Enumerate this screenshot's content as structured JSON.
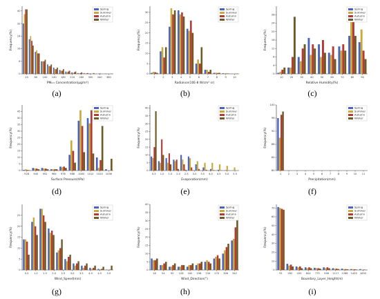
{
  "series_names": [
    "Spring",
    "Summer",
    "Autumn",
    "Winter"
  ],
  "colors": [
    "#4a62c0",
    "#c8a93a",
    "#b23b35",
    "#6e5a24"
  ],
  "chart_data": [
    {
      "type": "bar",
      "panel_label": "(a)",
      "xlabel": "PM₂.₅ Concentration(μg/m³)",
      "ylabel": "Frequency(%)",
      "categories": [
        "20",
        "40",
        "60",
        "80",
        "100",
        "120",
        "140",
        "160",
        "180",
        "200",
        "220",
        "240",
        "260",
        "280",
        "300"
      ],
      "tick_labels": [
        "20",
        "60",
        "100",
        "140",
        "180",
        "220",
        "260",
        "300",
        "340",
        "380"
      ],
      "ylim": [
        0,
        43
      ],
      "yticks": [
        0,
        8,
        16,
        24,
        32,
        40
      ],
      "series": [
        {
          "name": "Spring",
          "values": [
            32,
            22,
            14,
            8,
            6,
            4,
            2.5,
            1.5,
            1,
            0.5,
            0.5,
            0.3,
            0.2,
            0.1,
            0.1
          ]
        },
        {
          "name": "Summer",
          "values": [
            38,
            24,
            15,
            8,
            5,
            3,
            2,
            1,
            0.5,
            0.3,
            0.2,
            0.1,
            0.1,
            0,
            0
          ]
        },
        {
          "name": "Autumn",
          "values": [
            41,
            21,
            13,
            8,
            5,
            3,
            2,
            1.5,
            1,
            0.5,
            0.3,
            0.2,
            0.1,
            0.1,
            0.1
          ]
        },
        {
          "name": "Winter",
          "values": [
            41,
            18,
            13,
            9,
            6,
            4,
            3,
            2,
            1.5,
            1,
            0.5,
            0.5,
            0.3,
            0.2,
            0.2
          ]
        }
      ]
    },
    {
      "type": "bar",
      "panel_label": "(b)",
      "xlabel": "Radiance(10E-8 W/cm² sr)",
      "ylabel": "Frequency(%)",
      "categories": [
        "1",
        "2",
        "3",
        "4",
        "5",
        "6",
        "7",
        "8",
        "9",
        "10"
      ],
      "tick_labels": [
        "1",
        "2",
        "3",
        "4",
        "5",
        "6",
        "7",
        "8",
        "9",
        "10"
      ],
      "ylim": [
        0,
        33
      ],
      "yticks": [
        0,
        5,
        10,
        15,
        20,
        25,
        30
      ],
      "series": [
        {
          "name": "Spring",
          "values": [
            0.5,
            11,
            23,
            31,
            22,
            5,
            2,
            0.5,
            0.3,
            0.1
          ]
        },
        {
          "name": "Summer",
          "values": [
            1,
            13,
            32,
            29,
            21,
            7,
            2,
            0.6,
            0.3,
            0.1
          ]
        },
        {
          "name": "Autumn",
          "values": [
            0.8,
            8,
            29,
            30,
            26,
            5,
            1,
            0.4,
            0.2,
            0.1
          ]
        },
        {
          "name": "Winter",
          "values": [
            0.5,
            13,
            31,
            28,
            20,
            13,
            2,
            0.5,
            0.2,
            0.1
          ]
        }
      ]
    },
    {
      "type": "bar",
      "panel_label": "(c)",
      "xlabel": "Relative Humidity(%)",
      "ylabel": "Frequency(%)",
      "categories": [
        "10",
        "20",
        "30",
        "40",
        "50",
        "60",
        "70",
        "80",
        "90"
      ],
      "tick_labels": [
        "10",
        "20",
        "30",
        "40",
        "50",
        "60",
        "70",
        "80",
        "90"
      ],
      "ylim": [
        0,
        32
      ],
      "yticks": [
        0,
        4,
        8,
        12,
        16,
        20,
        24,
        28
      ],
      "series": [
        {
          "name": "Spring",
          "values": [
            0.5,
            3,
            8,
            17,
            14,
            10,
            13,
            18,
            15
          ]
        },
        {
          "name": "Summer",
          "values": [
            1,
            3,
            6,
            9,
            8,
            9,
            11,
            27,
            21
          ]
        },
        {
          "name": "Autumn",
          "values": [
            2,
            8,
            12,
            14,
            16,
            13,
            14,
            30,
            11
          ]
        },
        {
          "name": "Winter",
          "values": [
            3,
            27,
            14,
            12,
            10,
            7,
            11,
            18,
            7
          ]
        }
      ]
    },
    {
      "type": "bar",
      "panel_label": "(d)",
      "xlabel": "Surface Pressure(hPa)",
      "ylabel": "Frequency(%)",
      "categories": [
        "928",
        "940",
        "952",
        "964",
        "976",
        "988",
        "1000",
        "1012",
        "1024",
        "1036"
      ],
      "tick_labels": [
        "928",
        "940",
        "952",
        "964",
        "976",
        "988",
        "1000",
        "1012",
        "1024",
        "1036"
      ],
      "ylim": [
        0,
        50
      ],
      "yticks": [
        0,
        5,
        10,
        15,
        20,
        25,
        30,
        35,
        40,
        45
      ],
      "series": [
        {
          "name": "Spring",
          "values": [
            0.5,
            2,
            2,
            1,
            3,
            12,
            38,
            40,
            10,
            1
          ]
        },
        {
          "name": "Summer",
          "values": [
            1,
            1.5,
            1.5,
            1,
            2.5,
            23,
            46,
            36,
            2,
            0
          ]
        },
        {
          "name": "Autumn",
          "values": [
            0.5,
            1.5,
            1.5,
            1,
            3,
            15,
            34,
            46,
            8,
            0
          ]
        },
        {
          "name": "Winter",
          "values": [
            0.3,
            1,
            1,
            1,
            2,
            6,
            14,
            13,
            34,
            9
          ]
        }
      ]
    },
    {
      "type": "bar",
      "panel_label": "(e)",
      "xlabel": "Evaporation(mm)",
      "ylabel": "Frequency(%)",
      "categories": [
        "0.5",
        "1",
        "1.5",
        "2",
        "2.5",
        "3",
        "3.5",
        "4",
        "4.5",
        "5",
        "5.5",
        "6"
      ],
      "tick_labels": [
        "0.5",
        "1.0",
        "1.5",
        "2.0",
        "2.5",
        "3.0",
        "3.5",
        "4.0",
        "4.5",
        "5.0",
        "5.5"
      ],
      "ylim": [
        0,
        42
      ],
      "yticks": [
        0,
        5,
        10,
        15,
        20,
        25,
        30,
        35,
        40
      ],
      "series": [
        {
          "name": "Spring",
          "values": [
            9,
            6,
            8,
            7,
            10,
            9,
            4,
            2,
            1,
            0.5,
            0.3,
            0.1
          ]
        },
        {
          "name": "Summer",
          "values": [
            8,
            5,
            5,
            6,
            7,
            8,
            6,
            5,
            5,
            4,
            3,
            2
          ]
        },
        {
          "name": "Autumn",
          "values": [
            15,
            20,
            11,
            7,
            4,
            2,
            1,
            0.5,
            0.3,
            0.2,
            0.1,
            0
          ]
        },
        {
          "name": "Winter",
          "values": [
            38,
            10,
            4,
            1,
            0.5,
            0.2,
            0.1,
            0,
            0,
            0,
            0,
            0
          ]
        }
      ]
    },
    {
      "type": "bar",
      "panel_label": "(f)",
      "xlabel": "Precipitation(mm)",
      "ylabel": "Frequency(%)",
      "categories": [
        "1",
        "2",
        "3",
        "4",
        "5",
        "6",
        "7",
        "8",
        "9",
        "10",
        "11"
      ],
      "tick_labels": [
        "1",
        "2",
        "3",
        "4",
        "5",
        "6",
        "7",
        "8",
        "9",
        "10",
        "11"
      ],
      "ylim": [
        0,
        100
      ],
      "yticks": [
        80,
        84,
        88,
        92,
        96,
        100
      ],
      "series": [
        {
          "name": "Spring",
          "values": [
            96,
            2,
            1,
            0.5,
            0.3,
            0.2,
            0.1,
            0.1,
            0,
            0,
            0
          ]
        },
        {
          "name": "Summer",
          "values": [
            90,
            4,
            2,
            1,
            0.8,
            0.5,
            0.3,
            0.2,
            0.1,
            0.1,
            0.2
          ]
        },
        {
          "name": "Autumn",
          "values": [
            97,
            1.5,
            0.7,
            0.3,
            0.2,
            0.1,
            0.1,
            0,
            0,
            0,
            0
          ]
        },
        {
          "name": "Winter",
          "values": [
            98,
            1,
            0.5,
            0.2,
            0.1,
            0,
            0,
            0,
            0,
            0,
            0
          ]
        }
      ]
    },
    {
      "type": "bar",
      "panel_label": "(g)",
      "xlabel": "Wind_Speed(m/s)",
      "ylabel": "Frequency(%)",
      "categories": [
        "0.5",
        "1",
        "1.5",
        "2",
        "2.5",
        "3",
        "3.5",
        "4",
        "4.5",
        "5",
        "5.5"
      ],
      "tick_labels": [
        "0.5",
        "1.0",
        "1.5",
        "2.0",
        "2.5",
        "3.0",
        "3.5",
        "4.0",
        "4.5",
        "5.0"
      ],
      "ylim": [
        0,
        30
      ],
      "yticks": [
        0,
        5,
        10,
        15,
        20,
        25
      ],
      "series": [
        {
          "name": "Spring",
          "values": [
            14,
            22,
            28,
            19,
            8,
            5,
            3,
            2,
            1,
            0.5,
            0.2
          ]
        },
        {
          "name": "Summer",
          "values": [
            14,
            24,
            28,
            17,
            9,
            4,
            2,
            1,
            0.5,
            0.3,
            0.1
          ]
        },
        {
          "name": "Autumn",
          "values": [
            13,
            20,
            25,
            18,
            10,
            6,
            3,
            2,
            1,
            0.5,
            0.2
          ]
        },
        {
          "name": "Winter",
          "values": [
            7,
            16,
            22,
            16,
            14,
            7,
            4,
            3,
            2,
            1.5,
            2
          ]
        }
      ]
    },
    {
      "type": "bar",
      "panel_label": "(h)",
      "xlabel": "Wind_Direction(°)",
      "ylabel": "Frequency(%)",
      "categories": [
        "18",
        "54",
        "90",
        "126",
        "162",
        "198",
        "234",
        "270",
        "306",
        "342"
      ],
      "tick_labels": [
        "18",
        "54",
        "90",
        "126",
        "162",
        "198",
        "234",
        "270",
        "306",
        "342"
      ],
      "ylim": [
        0,
        40
      ],
      "yticks": [
        0,
        5,
        10,
        15,
        20,
        25,
        30,
        35,
        40
      ],
      "series": [
        {
          "name": "Spring",
          "values": [
            7,
            3,
            2,
            2,
            2,
            3,
            5,
            7,
            10,
            18
          ]
        },
        {
          "name": "Summer",
          "values": [
            6,
            3,
            2,
            2,
            3,
            4,
            6,
            8,
            12,
            19
          ]
        },
        {
          "name": "Autumn",
          "values": [
            6,
            4,
            3,
            3,
            3,
            4,
            5,
            9,
            14,
            26
          ]
        },
        {
          "name": "Winter",
          "values": [
            7,
            5,
            4,
            3,
            4,
            5,
            4,
            7,
            16,
            32
          ]
        }
      ]
    },
    {
      "type": "bar",
      "panel_label": "(i)",
      "xlabel": "Boundary_Layer_Height(m)",
      "ylabel": "Frequency(%)",
      "categories": [
        "91",
        "262",
        "433",
        "604",
        "775",
        "946",
        "1117",
        "1288",
        "1459",
        "1630"
      ],
      "tick_labels": [
        "91",
        "262",
        "433",
        "604",
        "775",
        "946",
        "1117",
        "1288",
        "1459",
        "1630"
      ],
      "ylim": [
        0,
        74
      ],
      "yticks": [
        0,
        10,
        20,
        30,
        40,
        50,
        60,
        70
      ],
      "series": [
        {
          "name": "Spring",
          "values": [
            71,
            7,
            4,
            3,
            2.5,
            3,
            2,
            1.5,
            1,
            1
          ]
        },
        {
          "name": "Summer",
          "values": [
            70,
            5,
            3,
            2,
            2,
            2,
            1.5,
            1,
            1,
            0.5
          ]
        },
        {
          "name": "Autumn",
          "values": [
            69,
            6,
            4,
            3,
            2,
            3,
            1.5,
            1,
            0.8,
            0.5
          ]
        },
        {
          "name": "Winter",
          "values": [
            68,
            4,
            2,
            2,
            1.5,
            2,
            1,
            0.8,
            0.5,
            0.3
          ]
        }
      ]
    }
  ]
}
